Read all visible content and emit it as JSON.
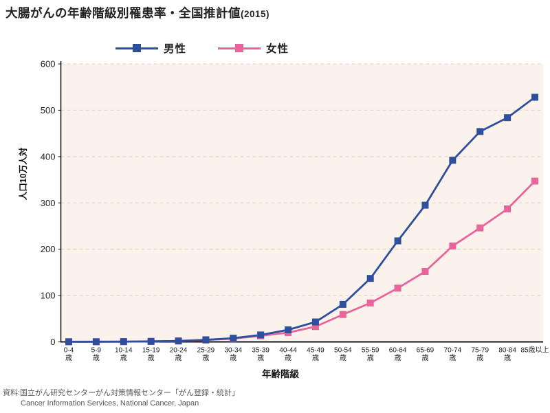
{
  "title": {
    "main": "大腸がんの年齢階級別罹患率・全国推計値",
    "suffix": "(2015)"
  },
  "source": {
    "line1": "資料:国立がん研究センターがん対策情報センター「がん登録・統計」",
    "line2": "Cancer Information Services, National Cancer, Japan"
  },
  "chart_data": {
    "type": "line",
    "title": "大腸がんの年齢階級別罹患率・全国推計値(2015)",
    "xlabel": "年齢階級",
    "ylabel": "人口10万人対",
    "ylim": [
      0,
      600
    ],
    "y_ticks": [
      0,
      100,
      200,
      300,
      400,
      500,
      600
    ],
    "grid": "horizontal-dashed",
    "legend_position": "top",
    "categories": [
      [
        "0-4",
        "歳"
      ],
      [
        "5-9",
        "歳"
      ],
      [
        "10-14",
        "歳"
      ],
      [
        "15-19",
        "歳"
      ],
      [
        "20-24",
        "歳"
      ],
      [
        "25-29",
        "歳"
      ],
      [
        "30-34",
        "歳"
      ],
      [
        "35-39",
        "歳"
      ],
      [
        "40-44",
        "歳"
      ],
      [
        "45-49",
        "歳"
      ],
      [
        "50-54",
        "歳"
      ],
      [
        "55-59",
        "歳"
      ],
      [
        "60-64",
        "歳"
      ],
      [
        "65-69",
        "歳"
      ],
      [
        "70-74",
        "歳"
      ],
      [
        "75-79",
        "歳"
      ],
      [
        "80-84",
        "歳"
      ],
      [
        "85歳以上"
      ]
    ],
    "series": [
      {
        "name": "男性",
        "color": "#2e4f9d",
        "marker": "square",
        "values": [
          0.3,
          0.3,
          0.5,
          1,
          2,
          4.5,
          8,
          15,
          26,
          43,
          81,
          137,
          218,
          295,
          392,
          454,
          484,
          528
        ]
      },
      {
        "name": "女性",
        "color": "#e9649a",
        "marker": "square",
        "values": [
          0.2,
          0.3,
          0.5,
          1,
          2,
          4,
          7,
          13,
          20,
          33,
          59,
          84,
          116,
          152,
          207,
          246,
          287,
          347
        ]
      }
    ],
    "colors": {
      "plot_background": "#fcf2ec",
      "gridline": "#e8d8ce",
      "axis": "#1a1a1a",
      "tick_text": "#222222"
    }
  }
}
